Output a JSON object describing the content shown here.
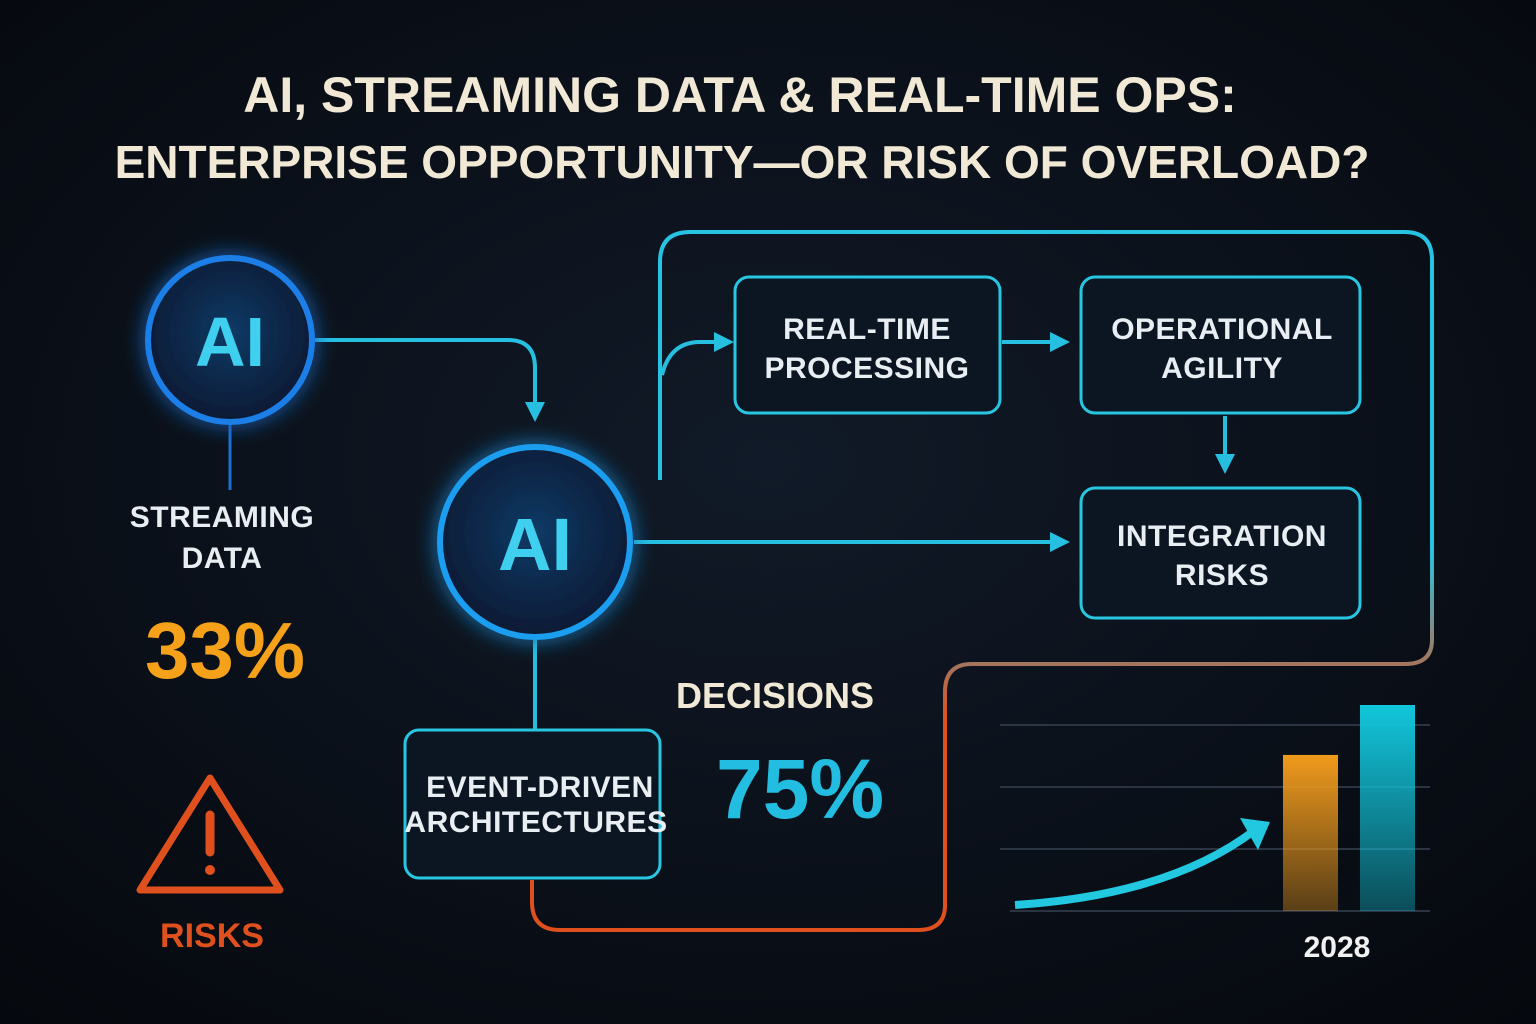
{
  "title": {
    "line1": "AI, STREAMING DATA & REAL-TIME OPS:",
    "line2": "ENTERPRISE OPPORTUNITY—OR RISK OF OVERLOAD?"
  },
  "nodes": [
    {
      "label": "AI"
    },
    {
      "label": "AI"
    },
    {
      "label": [
        "EVENT-DRIVEN",
        "ARCHITECTURES"
      ]
    },
    {
      "label": [
        "REAL-TIME",
        "PROCESSING"
      ]
    },
    {
      "label": [
        "OPERATIONAL",
        "AGILITY"
      ]
    },
    {
      "label": [
        "INTEGRATION",
        "RISKS"
      ]
    }
  ],
  "stats": [
    {
      "label": [
        "STREAMING",
        "DATA"
      ],
      "value": "33%"
    },
    {
      "label": [
        "DECISIONS"
      ],
      "value": "75%"
    }
  ],
  "risk_label": "RISKS",
  "growth_chart": {
    "type": "bar",
    "categories": [
      null,
      "2028"
    ],
    "values": [
      2.5,
      3.3
    ],
    "colors": [
      "#f09a1c",
      "#12c6dc"
    ],
    "ylim": [
      0,
      3.3
    ]
  }
}
